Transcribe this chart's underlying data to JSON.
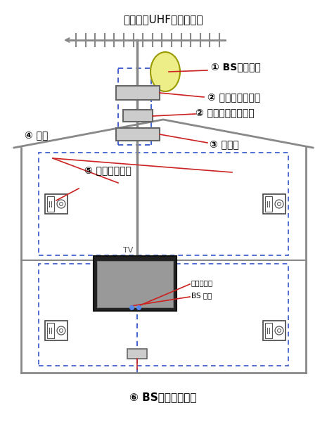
{
  "title_top": "地デジ（UHF）アンテナ",
  "label_bs_antenna": "① BSアンテナ",
  "label_booster_main": "② ブースター本体",
  "label_booster_power": "② ブースター電源部",
  "label_distributor": "③ 分配器",
  "label_wiring": "④ 配線",
  "label_inline": "⑤ 直列ユニット",
  "label_bs_sep": "⑥ BSセパレーター",
  "label_tv": "TV",
  "label_chideji": "地デジ入力",
  "label_bs_in": "BS 入力",
  "bg_color": "#ffffff",
  "line_color": "#3355cc",
  "house_color": "#888888",
  "red_color": "#cc2222",
  "antenna_color": "#888888",
  "bs_dish_color": "#eeee88",
  "box_color": "#cccccc"
}
